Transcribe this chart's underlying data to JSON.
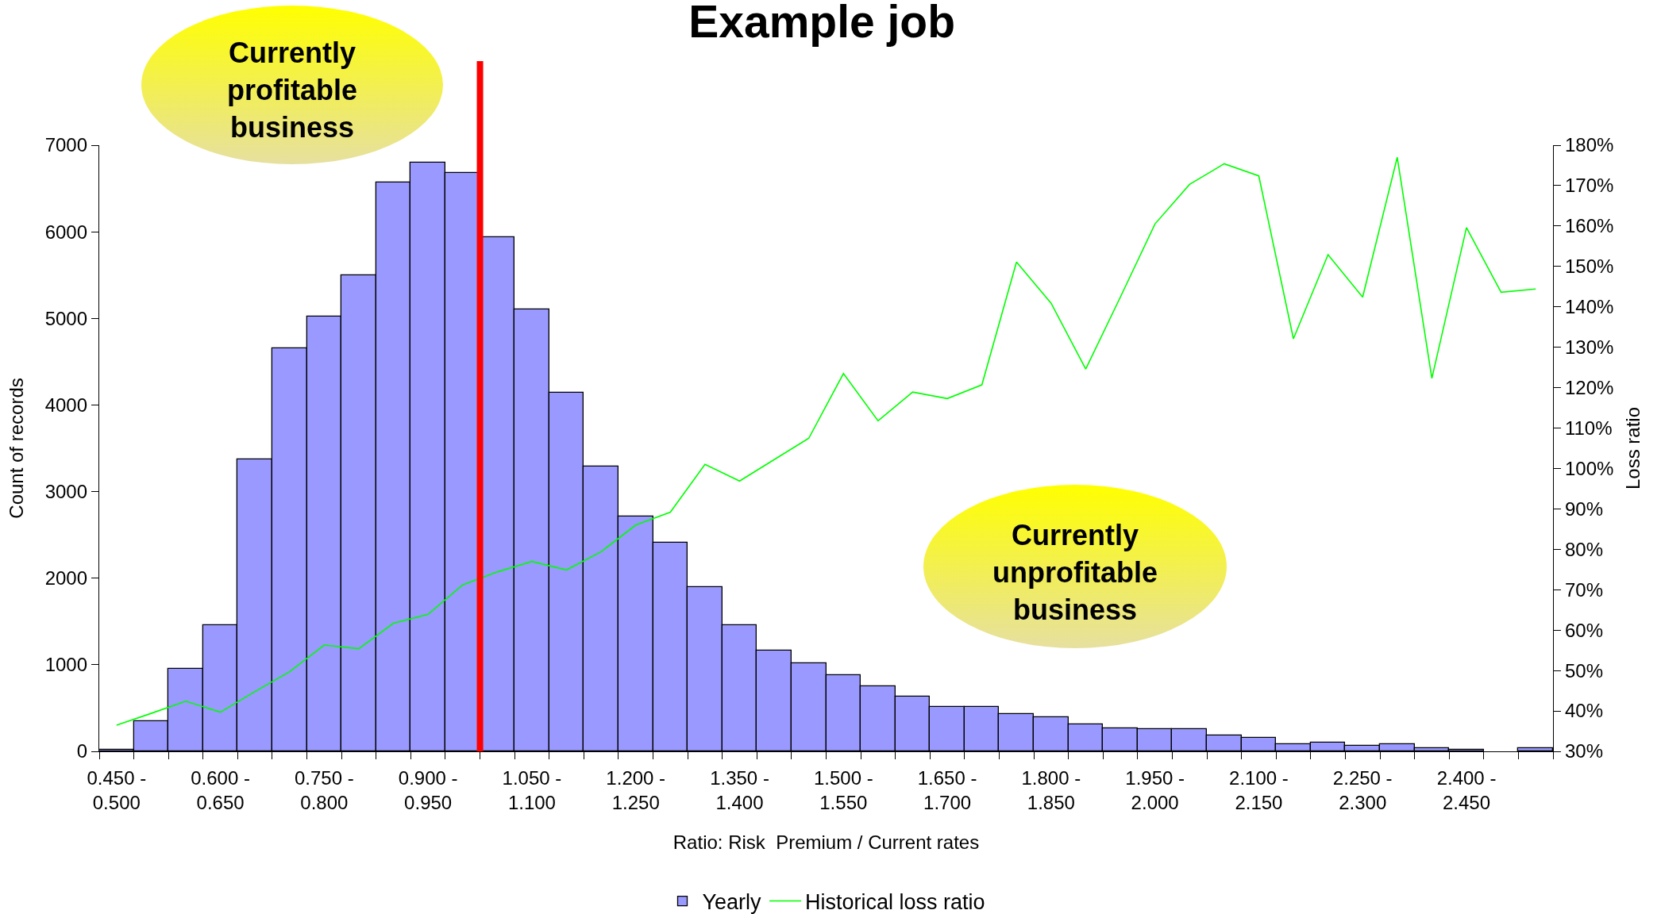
{
  "chart_data": {
    "type": "bar",
    "title": "Example job",
    "xlabel": "Ratio: Risk  Premium / Current rates",
    "ylabel": "Count of records",
    "y2label": "Loss ratio",
    "categories": [
      "0.450 -\n0.500",
      null,
      null,
      "0.600 -\n0.650",
      null,
      null,
      "0.750 -\n0.800",
      null,
      null,
      "0.900 -\n0.950",
      null,
      null,
      "1.050 -\n1.100",
      null,
      null,
      "1.200 -\n1.250",
      null,
      null,
      "1.350 -\n1.400",
      null,
      null,
      "1.500 -\n1.550",
      null,
      null,
      "1.650 -\n1.700",
      null,
      null,
      "1.800 -\n1.850",
      null,
      null,
      "1.950 -\n2.000",
      null,
      null,
      "2.100 -\n2.150",
      null,
      null,
      "2.250 -\n2.300",
      null,
      null,
      "2.400 -\n2.450",
      null,
      null
    ],
    "series": [
      {
        "name": "Yearly",
        "color": "#9999ff",
        "values": [
          20,
          350,
          950,
          1460,
          3370,
          4650,
          5020,
          5500,
          6570,
          6800,
          6680,
          5940,
          5100,
          4140,
          3290,
          2710,
          2410,
          1900,
          1460,
          1160,
          1020,
          880,
          750,
          630,
          510,
          510,
          430,
          390,
          310,
          270,
          260,
          260,
          180,
          160,
          80,
          100,
          60,
          80,
          40,
          20,
          0,
          40
        ]
      },
      {
        "name": "Historical loss ratio",
        "type": "line",
        "axis": "y2",
        "color": "#00ff00",
        "values": [
          36.5,
          39.4,
          42.4,
          39.7,
          44.8,
          49.7,
          56.3,
          55.4,
          61.7,
          63.9,
          71.2,
          74.4,
          77.0,
          74.9,
          79.4,
          86.0,
          89.2,
          101.0,
          96.9,
          102.2,
          107.5,
          123.5,
          111.8,
          118.9,
          117.3,
          120.7,
          151.1,
          140.9,
          124.6,
          142.4,
          160.5,
          170.3,
          175.4,
          172.4,
          132.1,
          152.9,
          142.4,
          177.0,
          122.3,
          159.6,
          143.6,
          144.4
        ]
      }
    ],
    "ylim": [
      0,
      7000
    ],
    "yticks": [
      0,
      1000,
      2000,
      3000,
      4000,
      5000,
      6000,
      7000
    ],
    "y2lim": [
      30,
      180
    ],
    "y2ticks": [
      {
        "value": 30,
        "label": "30%"
      },
      {
        "value": 40,
        "label": "40%"
      },
      {
        "value": 50,
        "label": "50%"
      },
      {
        "value": 60,
        "label": "60%"
      },
      {
        "value": 70,
        "label": "70%"
      },
      {
        "value": 80,
        "label": "80%"
      },
      {
        "value": 90,
        "label": "90%"
      },
      {
        "value": 100,
        "label": "100%"
      },
      {
        "value": 110,
        "label": "110%"
      },
      {
        "value": 120,
        "label": "120%"
      },
      {
        "value": 130,
        "label": "130%"
      },
      {
        "value": 140,
        "label": "140%"
      },
      {
        "value": 150,
        "label": "150%"
      },
      {
        "value": 160,
        "label": "160%"
      },
      {
        "value": 170,
        "label": "170%"
      },
      {
        "value": 180,
        "label": "180%"
      }
    ],
    "annotations": [
      "Currently\nprofitable\nbusiness",
      "Currently\nunprofitable\nbusiness"
    ],
    "legend": "bottom",
    "grid": false,
    "marker": "none",
    "line_style": "solid"
  }
}
